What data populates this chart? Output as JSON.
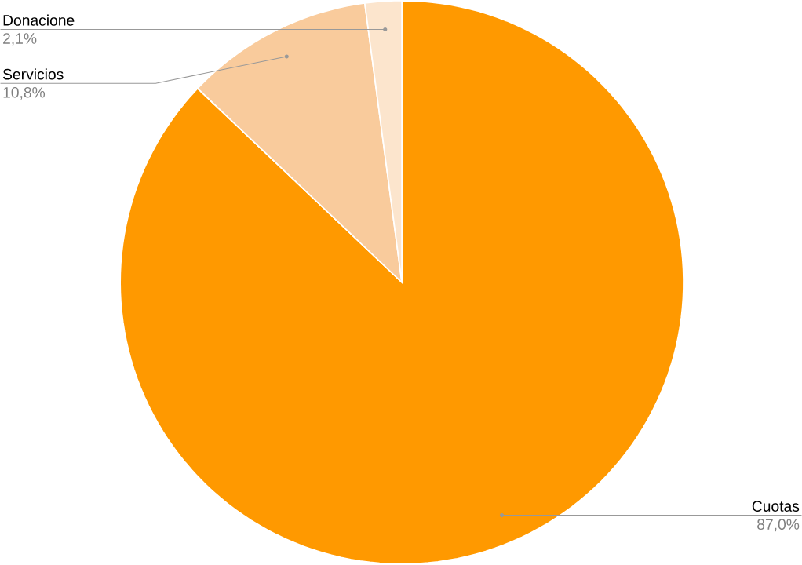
{
  "chart_data": {
    "type": "pie",
    "categories": [
      "Cuotas",
      "Servicios",
      "Donacione"
    ],
    "values": [
      87.0,
      10.8,
      2.1
    ],
    "colors": [
      "#ff9900",
      "#f9cb9c",
      "#fce5cd"
    ],
    "value_labels": [
      "87,0%",
      "10,8%",
      "2,1%"
    ]
  }
}
